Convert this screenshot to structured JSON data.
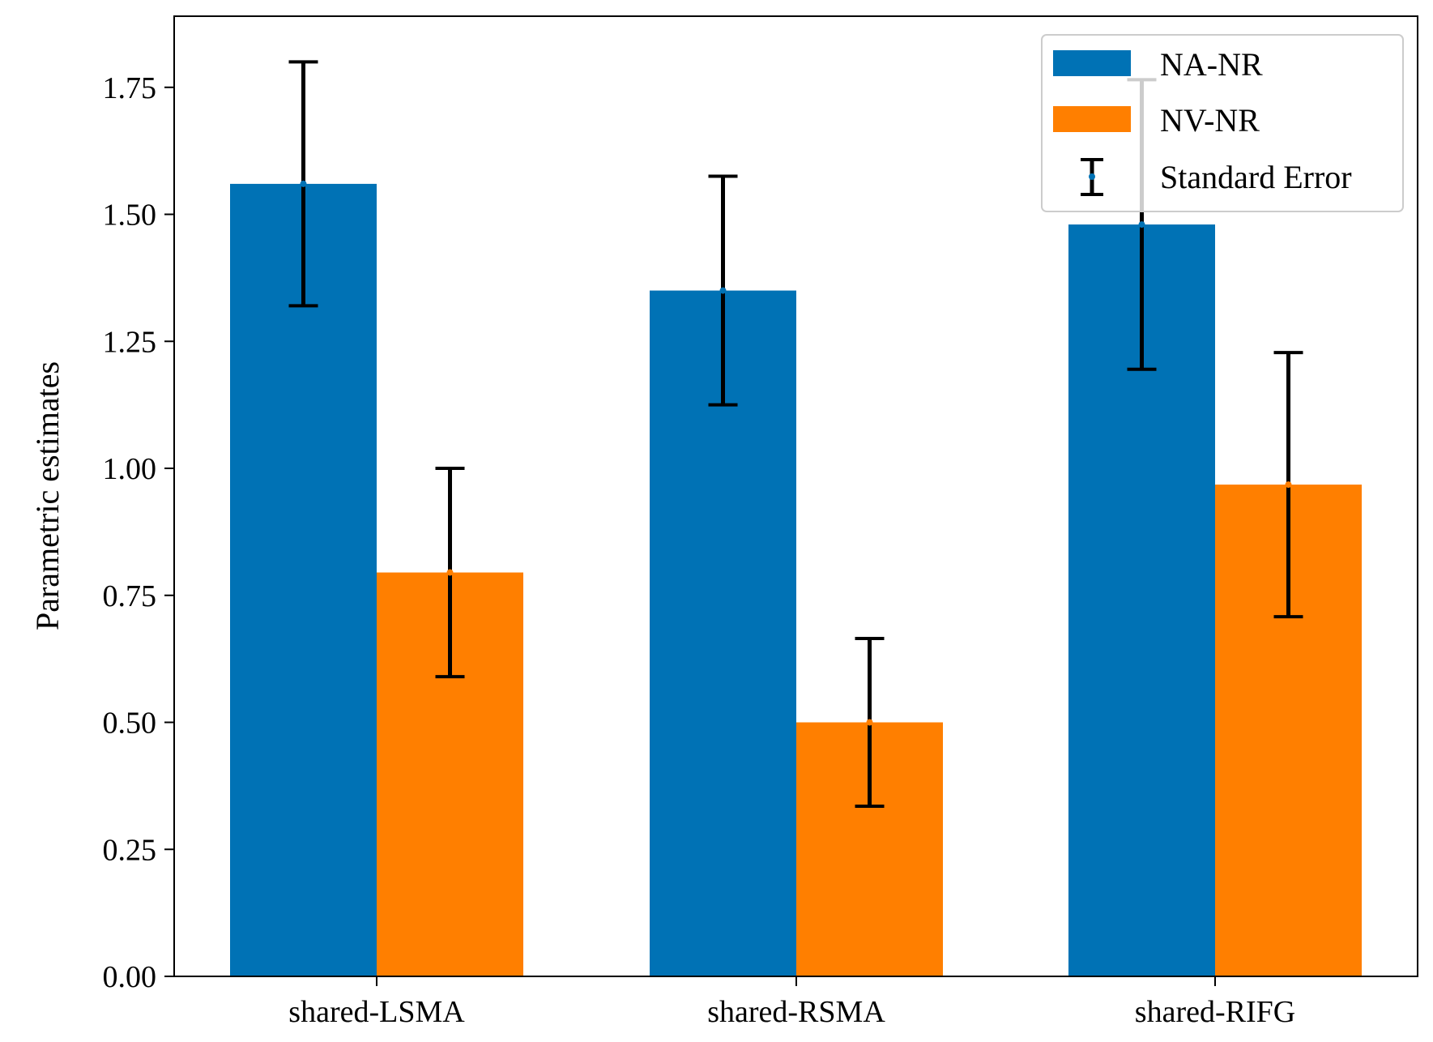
{
  "chart_data": {
    "type": "bar",
    "title": "",
    "xlabel": "",
    "ylabel": "Parametric estimates",
    "ylim": [
      0,
      1.89
    ],
    "yticks": [
      "0.00",
      "0.25",
      "0.50",
      "0.75",
      "1.00",
      "1.25",
      "1.50",
      "1.75"
    ],
    "categories": [
      "shared-LSMA",
      "shared-RSMA",
      "shared-RIFG"
    ],
    "series": [
      {
        "name": "NA-NR",
        "color": "#0072B5",
        "values": [
          1.56,
          1.35,
          1.48
        ],
        "error": [
          0.24,
          0.225,
          0.285
        ]
      },
      {
        "name": "NV-NR",
        "color": "#FF7F00",
        "values": [
          0.795,
          0.5,
          0.968
        ],
        "error": [
          0.205,
          0.165,
          0.26
        ]
      }
    ],
    "error_bar_label": "Standard Error",
    "legend_position": "top-right",
    "grid": false
  }
}
